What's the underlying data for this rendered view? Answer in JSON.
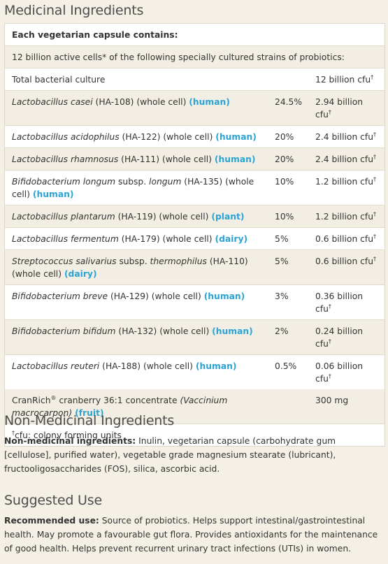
{
  "medicinal": {
    "title": "Medicinal Ingredients",
    "header_row": "Each vegetarian capsule contains:",
    "intro_row": "12 billion active cells* of the following specially cultured strains of probiotics:",
    "total": {
      "label": "Total bacterial culture",
      "amount": "12 billion cfu",
      "mark": "†"
    },
    "strains": [
      {
        "species": "Lactobacillus casei",
        "detail": " (HA-108) (whole cell) ",
        "source": "(human)",
        "pct": "24.5%",
        "amount": "2.94 billion cfu"
      },
      {
        "species": "Lactobacillus acidophilus",
        "detail": " (HA-122) (whole cell) ",
        "source": "(human)",
        "pct": "20%",
        "amount": "2.4 billion cfu"
      },
      {
        "species": "Lactobacillus rhamnosus",
        "detail": " (HA-111) (whole cell) ",
        "source": "(human)",
        "pct": "20%",
        "amount": "2.4 billion cfu"
      },
      {
        "species": "Bifidobacterium longum",
        "species_mid": " subsp. ",
        "subspecies": "longum",
        "detail": " (HA-135) (whole cell) ",
        "source": "(human)",
        "pct": "10%",
        "amount": "1.2 billion cfu"
      },
      {
        "species": "Lactobacillus plantarum",
        "detail": " (HA-119) (whole cell) ",
        "source": "(plant)",
        "pct": "10%",
        "amount": "1.2 billion cfu"
      },
      {
        "species": "Lactobacillus fermentum",
        "detail": " (HA-179) (whole cell) ",
        "source": "(dairy)",
        "pct": "5%",
        "amount": "0.6 billion cfu"
      },
      {
        "species": "Streptococcus salivarius",
        "species_mid": " subsp. ",
        "subspecies": "thermophilus",
        "detail": " (HA-110) (whole cell) ",
        "source": "(dairy)",
        "pct": "5%",
        "amount": "0.6 billion cfu"
      },
      {
        "species": "Bifidobacterium breve",
        "detail": " (HA-129) (whole cell) ",
        "source": "(human)",
        "pct": "3%",
        "amount": "0.36 billion cfu"
      },
      {
        "species": "Bifidobacterium bifidum",
        "detail": " (HA-132) (whole cell) ",
        "source": "(human)",
        "pct": "2%",
        "amount": "0.24 billion cfu"
      },
      {
        "species": "Lactobacillus reuteri",
        "detail": " (HA-188) (whole cell) ",
        "source": "(human)",
        "pct": "0.5%",
        "amount": "0.06 billion cfu"
      }
    ],
    "cranberry": {
      "brand": "CranRich",
      "brand_mark": "®",
      "text": " cranberry 36:1 concentrate ",
      "latin": "(Vaccinium macrocarpon)",
      "source": "(fruit)",
      "amount": "300 mg"
    },
    "footnote": {
      "mark": "†",
      "text": "cfu: colony forming units"
    }
  },
  "non_medicinal": {
    "title": "Non-Medicinal Ingredients",
    "label": "Non-medicinal ingredients:",
    "text": " Inulin, vegetarian capsule (carbohydrate gum [cellulose], purified water), vegetable grade magnesium stearate (lubricant), fructooligosaccharides (FOS), silica, ascorbic acid."
  },
  "suggested_use": {
    "title": "Suggested Use",
    "label": "Recommended use:",
    "text": " Source of probiotics. Helps support intestinal/gastrointestinal health. May promote a favourable gut flora. Provides antioxidants for the maintenance of good health. Helps prevent recurrent urinary tract infections (UTIs) in women."
  },
  "colors": {
    "source_text": "#2aa4d5",
    "title_text": "#4d4d4d",
    "row_alt": "#f3eee3",
    "page_bg": "#f4f0e6"
  }
}
